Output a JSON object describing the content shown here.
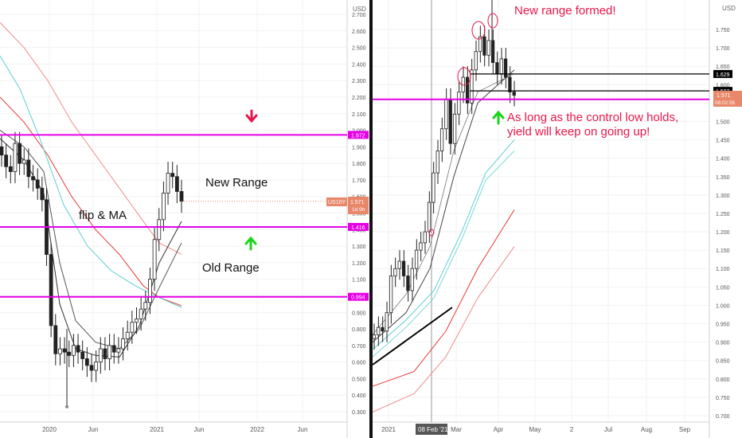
{
  "left": {
    "currency": "USD",
    "y_ticks": [
      "2.700",
      "2.600",
      "2.500",
      "2.400",
      "2.300",
      "2.200",
      "2.100",
      "2.000",
      "1.900",
      "1.800",
      "1.700",
      "1.600",
      "1.500",
      "1.400",
      "1.300",
      "1.200",
      "1.100",
      "1.000",
      "0.900",
      "0.800",
      "0.700",
      "0.600",
      "0.500",
      "0.400",
      "0.300"
    ],
    "x_ticks": [
      "2020",
      "Jun",
      "2021",
      "Jun",
      "2022",
      "Jun"
    ],
    "annotations": {
      "new_range": "New Range",
      "flip_ma": "flip & MA",
      "old_range": "Old Range"
    },
    "levels": [
      "1.972",
      "1.416",
      "0.994"
    ],
    "price_tag": {
      "symbol": "US10Y",
      "price": "1.571",
      "countdown": "1d 9h"
    },
    "colors": {
      "level": "#e600e6",
      "down_arrow": "#e8174a",
      "up_arrow": "#1ad41a",
      "ma_red": "#e53935",
      "ma_pink": "#f48a8a",
      "ma_cyan": "#5ccfd6",
      "ma_dark": "#333333"
    }
  },
  "right": {
    "currency": "USD",
    "y_ticks": [
      "1.750",
      "1.700",
      "1.650",
      "1.600",
      "1.550",
      "1.500",
      "1.450",
      "1.400",
      "1.350",
      "1.300",
      "1.250",
      "1.200",
      "1.150",
      "1.100",
      "1.050",
      "1.000",
      "0.950",
      "0.900",
      "0.850",
      "0.800",
      "0.750",
      "0.700"
    ],
    "x_ticks": [
      "2021",
      "08 Feb '21",
      "Mar",
      "Apr",
      "May",
      "2",
      "Jul",
      "Aug",
      "Sep"
    ],
    "levels": [
      "1.629",
      "1.583",
      "1.560"
    ],
    "price_tag": {
      "price": "1.571",
      "countdown": "08:02:55"
    },
    "annotations": {
      "new_range_formed": "New range formed!",
      "control_low": "As long as the control low holds,",
      "control_low2": "yield will keep on going up!"
    }
  },
  "chart_data": [
    {
      "type": "candlestick",
      "title": "",
      "symbol": "US10Y",
      "x_range": [
        "2019-10",
        "2022-08"
      ],
      "ylim": [
        0.25,
        2.75
      ],
      "closes": [
        1.85,
        1.78,
        1.75,
        1.92,
        1.8,
        1.82,
        1.72,
        1.7,
        1.65,
        1.58,
        1.25,
        0.82,
        0.65,
        0.68,
        0.66,
        0.64,
        0.7,
        0.66,
        0.62,
        0.58,
        0.55,
        0.6,
        0.68,
        0.62,
        0.7,
        0.66,
        0.68,
        0.74,
        0.78,
        0.84,
        0.86,
        0.92,
        0.96,
        1.1,
        1.34,
        1.46,
        1.62,
        1.74,
        1.72,
        1.63,
        1.571
      ],
      "horizontal_levels": [
        1.972,
        1.416,
        0.994
      ],
      "last_price": 1.571
    },
    {
      "type": "candlestick",
      "title": "",
      "symbol": "US10Y",
      "x_range": [
        "2020-12",
        "2021-09"
      ],
      "ylim": [
        0.69,
        1.78
      ],
      "closes": [
        0.92,
        0.94,
        0.93,
        0.98,
        1.08,
        1.1,
        1.12,
        1.08,
        1.04,
        1.1,
        1.15,
        1.17,
        1.2,
        1.28,
        1.36,
        1.42,
        1.48,
        1.56,
        1.44,
        1.52,
        1.58,
        1.62,
        1.55,
        1.64,
        1.69,
        1.73,
        1.68,
        1.72,
        1.66,
        1.63,
        1.67,
        1.62,
        1.58,
        1.571
      ],
      "horizontal_levels": [
        1.629,
        1.583,
        1.56
      ],
      "last_price": 1.571
    }
  ]
}
